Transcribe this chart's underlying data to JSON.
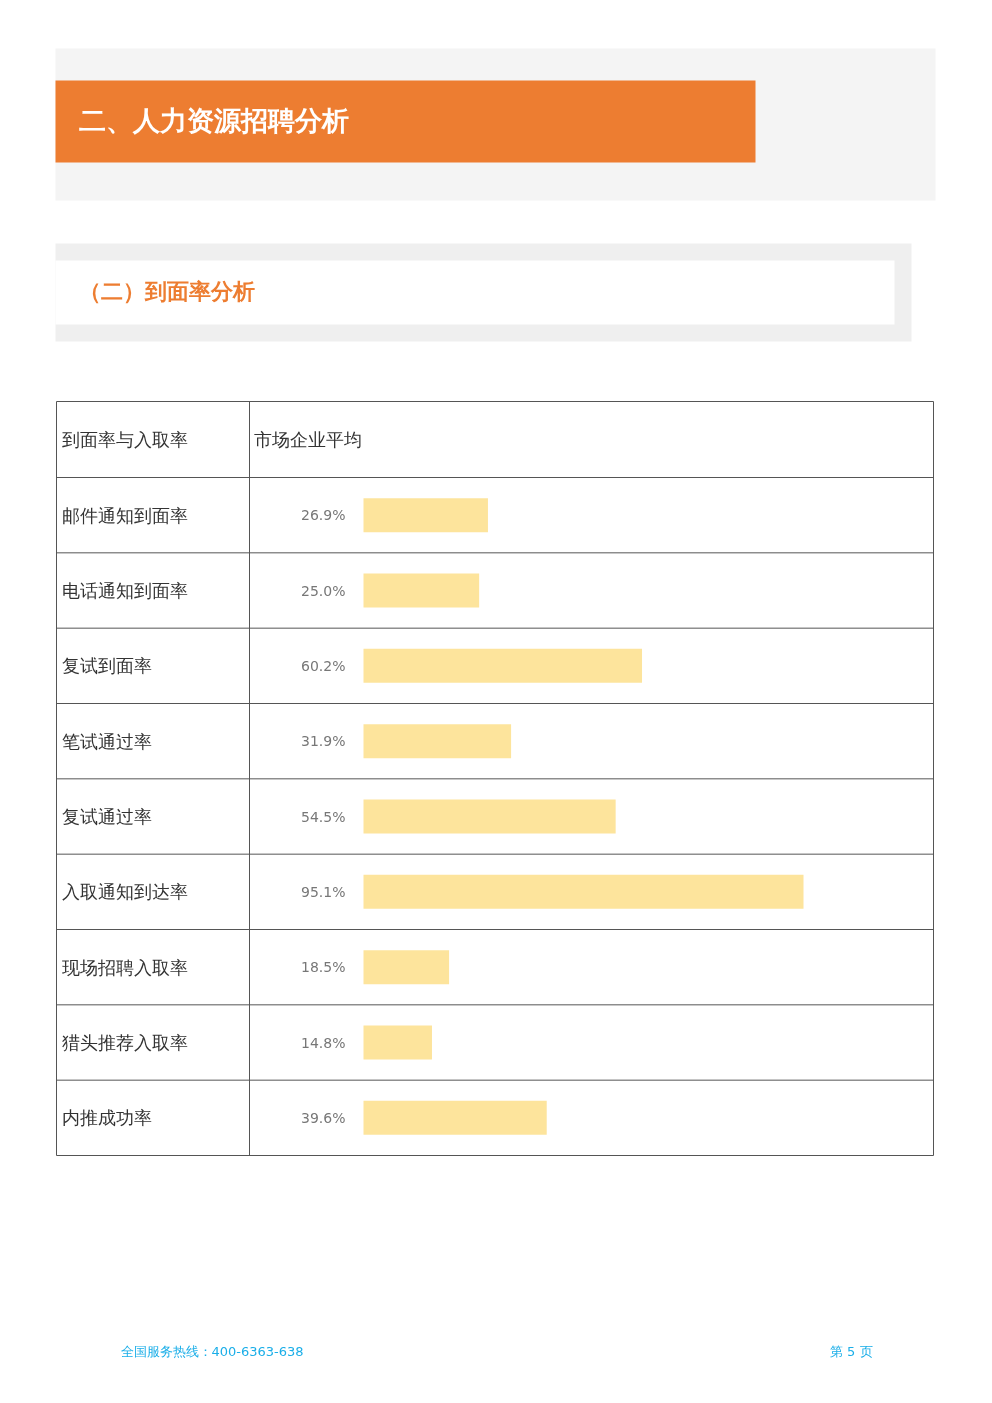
{
  "chart_data": {
    "type": "bar",
    "orientation": "horizontal",
    "title": "二、人力资源招聘分析",
    "subtitle": "（二）到面率分析",
    "categories": [
      "邮件通知到面率",
      "电话通知到面率",
      "复试到面率",
      "笔试通过率",
      "复试通过率",
      "入取通知到达率",
      "现场招聘入取率",
      "猎头推荐入取率",
      "内推成功率"
    ],
    "values": [
      26.9,
      25.0,
      60.2,
      31.9,
      54.5,
      95.1,
      18.5,
      14.8,
      39.6
    ],
    "value_labels": [
      "26.9%",
      "25.0%",
      "60.2%",
      "31.9%",
      "54.5%",
      "95.1%",
      "18.5%",
      "14.8%",
      "39.6%"
    ],
    "color": "#fde49c",
    "grid": false,
    "annotations": [
      "到面率与入取率",
      "市场企业平均",
      "全国服务热线：400-6363-638",
      "第 5 页"
    ]
  }
}
